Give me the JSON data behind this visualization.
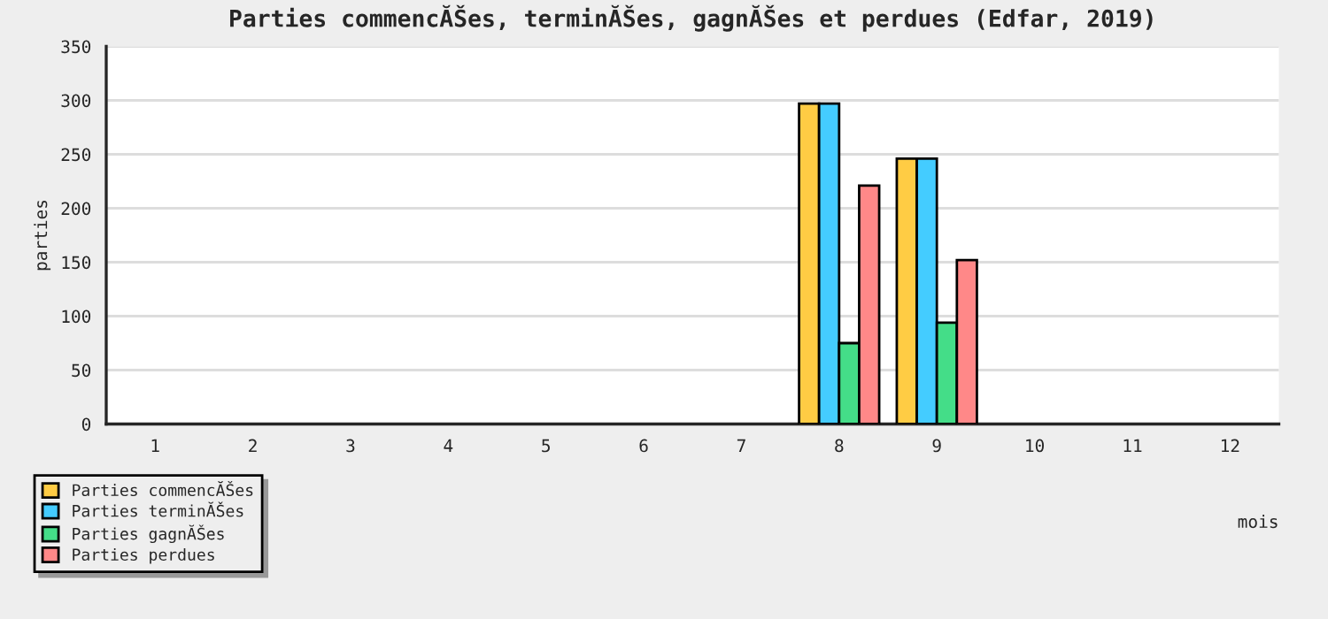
{
  "chart_data": {
    "type": "bar",
    "title": "Parties commencĂŠes, terminĂŠes, gagnĂŠes et perdues (Edfar, 2019)",
    "xlabel": "mois",
    "ylabel": "parties",
    "categories": [
      "1",
      "2",
      "3",
      "4",
      "5",
      "6",
      "7",
      "8",
      "9",
      "10",
      "11",
      "12"
    ],
    "series": [
      {
        "name": "Parties commencĂŠes",
        "color": "#ffcc44",
        "values": [
          null,
          null,
          null,
          null,
          null,
          null,
          null,
          297,
          246,
          null,
          null,
          null
        ]
      },
      {
        "name": "Parties terminĂŠes",
        "color": "#44ccff",
        "values": [
          null,
          null,
          null,
          null,
          null,
          null,
          null,
          297,
          246,
          null,
          null,
          null
        ]
      },
      {
        "name": "Parties gagnĂŠes",
        "color": "#44dd88",
        "values": [
          null,
          null,
          null,
          null,
          null,
          null,
          null,
          75,
          94,
          null,
          null,
          null
        ]
      },
      {
        "name": "Parties perdues",
        "color": "#ff8888",
        "values": [
          null,
          null,
          null,
          null,
          null,
          null,
          null,
          221,
          152,
          null,
          null,
          null
        ]
      }
    ],
    "ylim": [
      0,
      350
    ],
    "yticks": [
      0,
      50,
      100,
      150,
      200,
      250,
      300,
      350
    ],
    "grid": "y",
    "legend": "bottom left"
  }
}
